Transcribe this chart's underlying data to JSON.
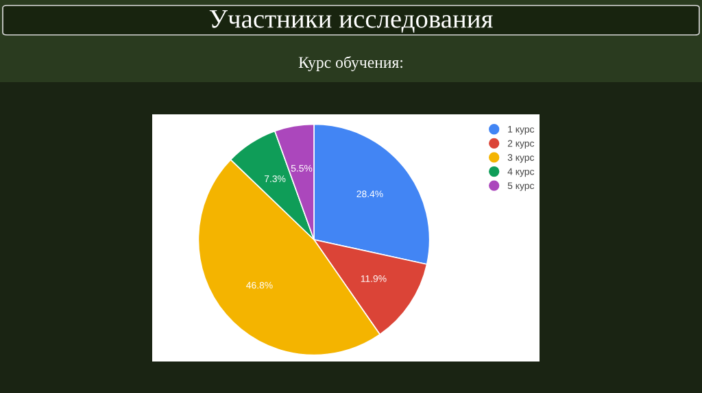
{
  "chart_data": {
    "type": "pie",
    "title": "Участники исследования",
    "subtitle": "Курс обучения:",
    "categories": [
      "1 курс",
      "2 курс",
      "3 курс",
      "4 курс",
      "5 курс"
    ],
    "values": [
      28.4,
      11.9,
      46.8,
      7.3,
      5.5
    ],
    "colors": [
      "#4285f4",
      "#db4437",
      "#f4b400",
      "#0f9d58",
      "#ab47bc"
    ],
    "value_labels": [
      "28.4%",
      "11.9%",
      "46.8%",
      "7.3%",
      "5.5%"
    ],
    "legend": "top right"
  }
}
